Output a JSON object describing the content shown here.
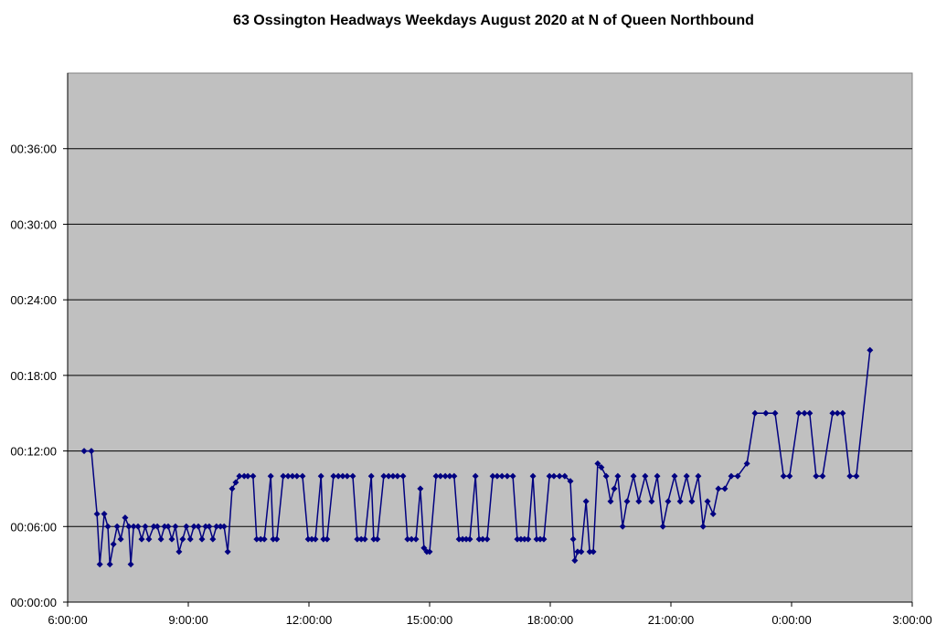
{
  "chart_data": {
    "type": "line",
    "title": "63 Ossington Headways Weekdays August 2020 at N of Queen Northbound",
    "x": [
      6.41,
      6.59,
      6.73,
      6.8,
      6.91,
      7.0,
      7.05,
      7.14,
      7.23,
      7.32,
      7.43,
      7.52,
      7.57,
      7.64,
      7.75,
      7.84,
      7.93,
      8.02,
      8.14,
      8.23,
      8.32,
      8.41,
      8.5,
      8.59,
      8.68,
      8.77,
      8.86,
      8.95,
      9.05,
      9.14,
      9.25,
      9.34,
      9.43,
      9.52,
      9.61,
      9.7,
      9.8,
      9.89,
      9.98,
      10.09,
      10.18,
      10.27,
      10.39,
      10.48,
      10.61,
      10.7,
      10.8,
      10.89,
      11.05,
      11.11,
      11.2,
      11.36,
      11.48,
      11.59,
      11.7,
      11.84,
      11.98,
      12.07,
      12.16,
      12.3,
      12.36,
      12.45,
      12.61,
      12.73,
      12.84,
      12.95,
      13.09,
      13.2,
      13.3,
      13.39,
      13.55,
      13.61,
      13.7,
      13.86,
      13.98,
      14.09,
      14.2,
      14.34,
      14.45,
      14.55,
      14.66,
      14.77,
      14.86,
      14.93,
      15.0,
      15.16,
      15.27,
      15.39,
      15.5,
      15.61,
      15.73,
      15.82,
      15.91,
      16.0,
      16.14,
      16.23,
      16.32,
      16.43,
      16.57,
      16.68,
      16.8,
      16.93,
      17.07,
      17.18,
      17.27,
      17.36,
      17.45,
      17.57,
      17.66,
      17.75,
      17.84,
      17.98,
      18.09,
      18.23,
      18.36,
      18.5,
      18.57,
      18.61,
      18.68,
      18.77,
      18.89,
      18.98,
      19.07,
      19.18,
      19.27,
      19.39,
      19.5,
      19.59,
      19.68,
      19.8,
      19.91,
      20.07,
      20.2,
      20.36,
      20.52,
      20.66,
      20.8,
      20.93,
      21.09,
      21.23,
      21.39,
      21.52,
      21.68,
      21.8,
      21.91,
      22.05,
      22.18,
      22.34,
      22.5,
      22.66,
      22.89,
      23.09,
      23.36,
      23.59,
      23.8,
      23.95,
      24.18,
      24.32,
      24.45,
      24.61,
      24.77,
      25.02,
      25.14,
      25.27,
      25.45,
      25.61,
      25.95
    ],
    "values": [
      12,
      12,
      7,
      3,
      7,
      6,
      3,
      4.6,
      6,
      5,
      6.7,
      6,
      3,
      6,
      6,
      5,
      6,
      5,
      6,
      6,
      5,
      6,
      6,
      5,
      6,
      4,
      5,
      6,
      5,
      6,
      6,
      5,
      6,
      6,
      5,
      6,
      6,
      6,
      4,
      9,
      9.5,
      10,
      10,
      10,
      10,
      5,
      5,
      5,
      10,
      5,
      5,
      10,
      10,
      10,
      10,
      10,
      5,
      5,
      5,
      10,
      5,
      5,
      10,
      10,
      10,
      10,
      10,
      5,
      5,
      5,
      10,
      5,
      5,
      10,
      10,
      10,
      10,
      10,
      5,
      5,
      5,
      9,
      4.3,
      4,
      4,
      10,
      10,
      10,
      10,
      10,
      5,
      5,
      5,
      5,
      10,
      5,
      5,
      5,
      10,
      10,
      10,
      10,
      10,
      5,
      5,
      5,
      5,
      10,
      5,
      5,
      5,
      10,
      10,
      10,
      10,
      9.6,
      5,
      3.3,
      4,
      4,
      8,
      4,
      4,
      11,
      10.7,
      10,
      8,
      9,
      10,
      6,
      8,
      10,
      8,
      10,
      8,
      10,
      6,
      8,
      10,
      8,
      10,
      8,
      10,
      6,
      8,
      7,
      9,
      9,
      10,
      10,
      11,
      15,
      15,
      15,
      10,
      10,
      15,
      15,
      15,
      10,
      10,
      15,
      15,
      15,
      10,
      10,
      20
    ],
    "color": "#000080",
    "background": "#c0c0c0",
    "xlim": [
      6,
      27
    ],
    "xticks": [
      {
        "value": 6,
        "label": "6:00:00"
      },
      {
        "value": 9,
        "label": "9:00:00"
      },
      {
        "value": 12,
        "label": "12:00:00"
      },
      {
        "value": 15,
        "label": "15:00:00"
      },
      {
        "value": 18,
        "label": "18:00:00"
      },
      {
        "value": 21,
        "label": "21:00:00"
      },
      {
        "value": 24,
        "label": "0:00:00"
      },
      {
        "value": 27,
        "label": "3:00:00"
      }
    ],
    "ylim": [
      0,
      42
    ],
    "yticks": [
      {
        "value": 0,
        "label": "00:00:00"
      },
      {
        "value": 6,
        "label": "00:06:00"
      },
      {
        "value": 12,
        "label": "00:12:00"
      },
      {
        "value": 18,
        "label": "00:18:00"
      },
      {
        "value": 24,
        "label": "00:24:00"
      },
      {
        "value": 30,
        "label": "00:30:00"
      },
      {
        "value": 36,
        "label": "00:36:00"
      }
    ],
    "grid": true
  }
}
